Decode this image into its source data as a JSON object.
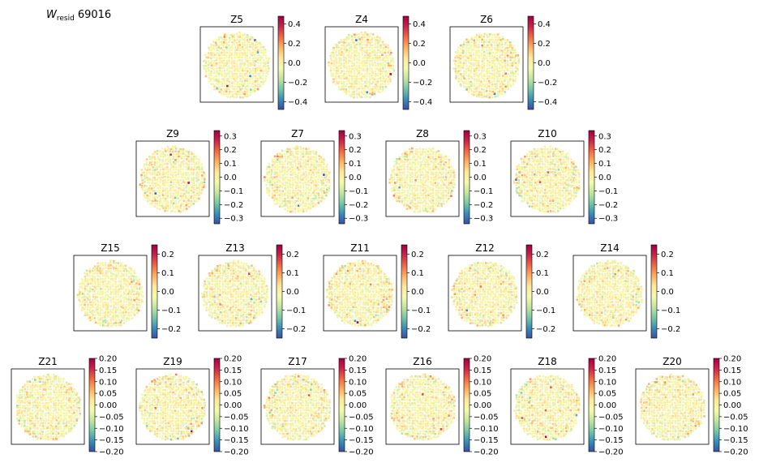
{
  "figure_title_main": "W",
  "figure_title_sub": "resid",
  "figure_title_id": "69016",
  "colormap": "Spectral_r",
  "colormap_stops": [
    "#3b4fa2",
    "#3a8fb8",
    "#79c8a5",
    "#c3e69f",
    "#f4fbad",
    "#fee89b",
    "#fdaf62",
    "#ef6a45",
    "#c9264a",
    "#9e0142"
  ],
  "chart_data": [
    {
      "type": "heatmap",
      "row": 0,
      "panels": [
        "Z5",
        "Z4",
        "Z6"
      ],
      "vlim": [
        -0.48,
        0.48
      ],
      "ticks": [
        0.4,
        0.2,
        0.0,
        -0.2,
        -0.4
      ],
      "tick_labels": [
        "0.4",
        "0.2",
        "0.0",
        "−0.2",
        "−0.4"
      ]
    },
    {
      "type": "heatmap",
      "row": 1,
      "panels": [
        "Z9",
        "Z7",
        "Z8",
        "Z10"
      ],
      "vlim": [
        -0.34,
        0.34
      ],
      "ticks": [
        0.3,
        0.2,
        0.1,
        0.0,
        -0.1,
        -0.2,
        -0.3
      ],
      "tick_labels": [
        "0.3",
        "0.2",
        "0.1",
        "0.0",
        "−0.1",
        "−0.2",
        "−0.3"
      ]
    },
    {
      "type": "heatmap",
      "row": 2,
      "panels": [
        "Z15",
        "Z13",
        "Z11",
        "Z12",
        "Z14"
      ],
      "vlim": [
        -0.25,
        0.25
      ],
      "ticks": [
        0.2,
        0.1,
        0.0,
        -0.1,
        -0.2
      ],
      "tick_labels": [
        "0.2",
        "0.1",
        "0.0",
        "−0.1",
        "−0.2"
      ]
    },
    {
      "type": "heatmap",
      "row": 3,
      "panels": [
        "Z21",
        "Z19",
        "Z17",
        "Z16",
        "Z18",
        "Z20"
      ],
      "vlim": [
        -0.2,
        0.2
      ],
      "ticks": [
        0.2,
        0.15,
        0.1,
        0.05,
        0.0,
        -0.05,
        -0.1,
        -0.15,
        -0.2
      ],
      "tick_labels": [
        "0.20",
        "0.15",
        "0.10",
        "0.05",
        "0.00",
        "−0.05",
        "−0.10",
        "−0.15",
        "−0.20"
      ]
    }
  ]
}
